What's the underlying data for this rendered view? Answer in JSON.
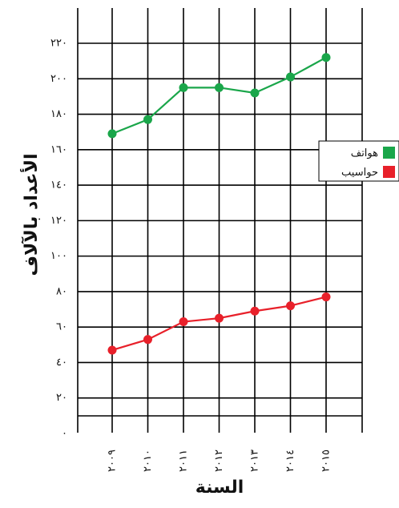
{
  "chart_data": {
    "type": "line",
    "title": "",
    "xlabel": "السنة",
    "ylabel": "الأعداد بالآلاف",
    "categories": [
      "٢٠٠٩",
      "٢٠١٠",
      "٢٠١١",
      "٢٠١٢",
      "٢٠١٣",
      "٢٠١٤",
      "٢٠١٥"
    ],
    "x": [
      2009,
      2010,
      2011,
      2012,
      2013,
      2014,
      2015
    ],
    "ylim": [
      0,
      220
    ],
    "yticks": [
      0,
      20,
      40,
      60,
      80,
      100,
      120,
      140,
      160,
      180,
      200,
      220
    ],
    "ytick_labels": [
      "٠",
      "٢٠",
      "٤٠",
      "٦٠",
      "٨٠",
      "١٠٠",
      "١٢٠",
      "١٤٠",
      "١٦٠",
      "١٨٠",
      "٢٠٠",
      "٢٢٠"
    ],
    "grid": true,
    "legend_position": "right",
    "series": [
      {
        "name": "هواتف",
        "color": "#1aa64a",
        "values": [
          169,
          177,
          195,
          195,
          192,
          201,
          212
        ]
      },
      {
        "name": "حواسيب",
        "color": "#e8202a",
        "values": [
          47,
          53,
          63,
          65,
          69,
          72,
          77
        ]
      }
    ]
  }
}
